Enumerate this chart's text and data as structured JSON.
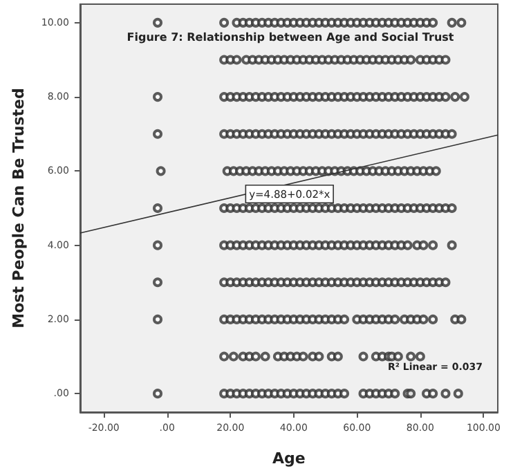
{
  "chart_data": {
    "type": "scatter",
    "title": "Figure 7: Relationship between Age and Social Trust",
    "xlabel": "Age",
    "ylabel": "Most People Can Be Trusted",
    "xlim": [
      -27.5,
      104.5
    ],
    "ylim": [
      -0.5,
      10.5
    ],
    "xticks": [
      {
        "value": -20,
        "label": "-20.00"
      },
      {
        "value": 0,
        "label": ".00"
      },
      {
        "value": 20,
        "label": "20.00"
      },
      {
        "value": 40,
        "label": "40.00"
      },
      {
        "value": 60,
        "label": "60.00"
      },
      {
        "value": 80,
        "label": "80.00"
      },
      {
        "value": 100,
        "label": "100.00"
      }
    ],
    "yticks": [
      {
        "value": 0,
        "label": ".00"
      },
      {
        "value": 2,
        "label": "2.00"
      },
      {
        "value": 4,
        "label": "4.00"
      },
      {
        "value": 6,
        "label": "6.00"
      },
      {
        "value": 8,
        "label": "8.00"
      },
      {
        "value": 10,
        "label": "10.00"
      }
    ],
    "grid": false,
    "marker": "circle",
    "annotations": [
      {
        "text": "y=4.88+0.02*x",
        "x": 25,
        "y": 5.38
      },
      "R² Linear = 0.037"
    ],
    "series": [
      {
        "color": "#333333",
        "x": [
          -3,
          18,
          22,
          24,
          26,
          28,
          30,
          32,
          34,
          36,
          38,
          40,
          42,
          44,
          46,
          48,
          50,
          52,
          54,
          56,
          58,
          60,
          62,
          64,
          66,
          68,
          70,
          72,
          74,
          76,
          78,
          80,
          82,
          84,
          90,
          93
        ],
        "values": [
          10,
          10,
          10,
          10,
          10,
          10,
          10,
          10,
          10,
          10,
          10,
          10,
          10,
          10,
          10,
          10,
          10,
          10,
          10,
          10,
          10,
          10,
          10,
          10,
          10,
          10,
          10,
          10,
          10,
          10,
          10,
          10,
          10,
          10,
          10,
          10
        ]
      },
      {
        "color": "#333333",
        "x": [
          18,
          20,
          22,
          25,
          27,
          29,
          31,
          33,
          35,
          37,
          39,
          41,
          43,
          45,
          47,
          49,
          51,
          53,
          55,
          57,
          59,
          61,
          63,
          65,
          67,
          69,
          71,
          73,
          75,
          77,
          80,
          82,
          84,
          86,
          88
        ],
        "values": [
          9,
          9,
          9,
          9,
          9,
          9,
          9,
          9,
          9,
          9,
          9,
          9,
          9,
          9,
          9,
          9,
          9,
          9,
          9,
          9,
          9,
          9,
          9,
          9,
          9,
          9,
          9,
          9,
          9,
          9,
          9,
          9,
          9,
          9,
          9
        ]
      },
      {
        "color": "#333333",
        "x": [
          -3,
          18,
          20,
          22,
          24,
          26,
          28,
          30,
          32,
          34,
          36,
          38,
          40,
          42,
          44,
          46,
          48,
          50,
          52,
          54,
          56,
          58,
          60,
          62,
          64,
          66,
          68,
          70,
          72,
          74,
          76,
          78,
          80,
          82,
          84,
          86,
          88,
          91,
          94
        ],
        "values": [
          8,
          8,
          8,
          8,
          8,
          8,
          8,
          8,
          8,
          8,
          8,
          8,
          8,
          8,
          8,
          8,
          8,
          8,
          8,
          8,
          8,
          8,
          8,
          8,
          8,
          8,
          8,
          8,
          8,
          8,
          8,
          8,
          8,
          8,
          8,
          8,
          8,
          8,
          8
        ]
      },
      {
        "color": "#333333",
        "x": [
          -3,
          18,
          20,
          22,
          24,
          26,
          28,
          30,
          32,
          34,
          36,
          38,
          40,
          42,
          44,
          46,
          48,
          50,
          52,
          54,
          56,
          58,
          60,
          62,
          64,
          66,
          68,
          70,
          72,
          74,
          76,
          78,
          80,
          82,
          84,
          86,
          88,
          90
        ],
        "values": [
          7,
          7,
          7,
          7,
          7,
          7,
          7,
          7,
          7,
          7,
          7,
          7,
          7,
          7,
          7,
          7,
          7,
          7,
          7,
          7,
          7,
          7,
          7,
          7,
          7,
          7,
          7,
          7,
          7,
          7,
          7,
          7,
          7,
          7,
          7,
          7,
          7,
          7
        ]
      },
      {
        "color": "#333333",
        "x": [
          -2,
          19,
          21,
          23,
          25,
          27,
          29,
          31,
          33,
          35,
          37,
          39,
          41,
          43,
          45,
          47,
          49,
          51,
          53,
          55,
          57,
          59,
          61,
          63,
          65,
          67,
          69,
          71,
          73,
          75,
          77,
          79,
          81,
          83,
          85
        ],
        "values": [
          6,
          6,
          6,
          6,
          6,
          6,
          6,
          6,
          6,
          6,
          6,
          6,
          6,
          6,
          6,
          6,
          6,
          6,
          6,
          6,
          6,
          6,
          6,
          6,
          6,
          6,
          6,
          6,
          6,
          6,
          6,
          6,
          6,
          6,
          6
        ]
      },
      {
        "color": "#333333",
        "x": [
          -3,
          18,
          20,
          22,
          24,
          26,
          28,
          30,
          32,
          34,
          36,
          38,
          40,
          42,
          44,
          46,
          48,
          50,
          52,
          54,
          56,
          58,
          60,
          62,
          64,
          66,
          68,
          70,
          72,
          74,
          76,
          78,
          80,
          82,
          84,
          86,
          88,
          90
        ],
        "values": [
          5,
          5,
          5,
          5,
          5,
          5,
          5,
          5,
          5,
          5,
          5,
          5,
          5,
          5,
          5,
          5,
          5,
          5,
          5,
          5,
          5,
          5,
          5,
          5,
          5,
          5,
          5,
          5,
          5,
          5,
          5,
          5,
          5,
          5,
          5,
          5,
          5,
          5
        ]
      },
      {
        "color": "#333333",
        "x": [
          -3,
          18,
          20,
          22,
          24,
          26,
          28,
          30,
          32,
          34,
          36,
          38,
          40,
          42,
          44,
          46,
          48,
          50,
          52,
          54,
          56,
          58,
          60,
          62,
          64,
          66,
          68,
          70,
          72,
          74,
          76,
          79,
          81,
          84,
          90
        ],
        "values": [
          4,
          4,
          4,
          4,
          4,
          4,
          4,
          4,
          4,
          4,
          4,
          4,
          4,
          4,
          4,
          4,
          4,
          4,
          4,
          4,
          4,
          4,
          4,
          4,
          4,
          4,
          4,
          4,
          4,
          4,
          4,
          4,
          4,
          4,
          4
        ]
      },
      {
        "color": "#333333",
        "x": [
          -3,
          18,
          20,
          22,
          24,
          26,
          28,
          30,
          32,
          34,
          36,
          38,
          40,
          42,
          44,
          46,
          48,
          50,
          52,
          54,
          56,
          58,
          60,
          62,
          64,
          66,
          68,
          70,
          72,
          74,
          76,
          78,
          80,
          82,
          84,
          86,
          88
        ],
        "values": [
          3,
          3,
          3,
          3,
          3,
          3,
          3,
          3,
          3,
          3,
          3,
          3,
          3,
          3,
          3,
          3,
          3,
          3,
          3,
          3,
          3,
          3,
          3,
          3,
          3,
          3,
          3,
          3,
          3,
          3,
          3,
          3,
          3,
          3,
          3,
          3,
          3
        ]
      },
      {
        "color": "#333333",
        "x": [
          -3,
          18,
          20,
          22,
          24,
          26,
          28,
          30,
          32,
          34,
          36,
          38,
          40,
          42,
          44,
          46,
          48,
          50,
          52,
          54,
          56,
          60,
          62,
          64,
          66,
          68,
          70,
          72,
          75,
          77,
          79,
          81,
          84,
          91,
          93
        ],
        "values": [
          2,
          2,
          2,
          2,
          2,
          2,
          2,
          2,
          2,
          2,
          2,
          2,
          2,
          2,
          2,
          2,
          2,
          2,
          2,
          2,
          2,
          2,
          2,
          2,
          2,
          2,
          2,
          2,
          2,
          2,
          2,
          2,
          2,
          2,
          2
        ]
      },
      {
        "color": "#333333",
        "x": [
          18,
          21,
          24,
          26,
          28,
          31,
          35,
          37,
          39,
          41,
          43,
          46,
          48,
          52,
          54,
          62,
          66,
          68,
          70,
          71,
          73,
          77,
          80
        ],
        "values": [
          1,
          1,
          1,
          1,
          1,
          1,
          1,
          1,
          1,
          1,
          1,
          1,
          1,
          1,
          1,
          1,
          1,
          1,
          1,
          1,
          1,
          1,
          1
        ]
      },
      {
        "color": "#333333",
        "x": [
          -3,
          18,
          20,
          22,
          24,
          26,
          28,
          30,
          32,
          34,
          36,
          38,
          40,
          42,
          44,
          46,
          48,
          50,
          52,
          54,
          56,
          62,
          64,
          66,
          68,
          70,
          72,
          76,
          77,
          82,
          84,
          88,
          92
        ],
        "values": [
          0,
          0,
          0,
          0,
          0,
          0,
          0,
          0,
          0,
          0,
          0,
          0,
          0,
          0,
          0,
          0,
          0,
          0,
          0,
          0,
          0,
          0,
          0,
          0,
          0,
          0,
          0,
          0,
          0,
          0,
          0,
          0,
          0
        ]
      },
      {
        "type": "line",
        "color": "#333333",
        "marker": "none",
        "x": [
          -27.5,
          104.5
        ],
        "values": [
          4.33,
          6.97
        ]
      }
    ]
  }
}
